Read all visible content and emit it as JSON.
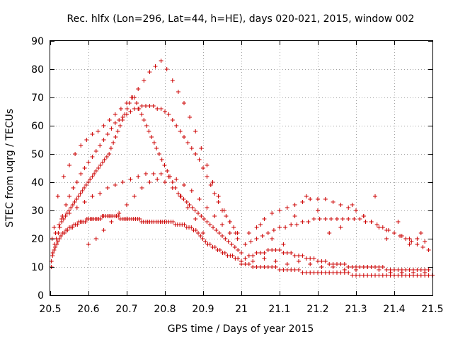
{
  "chart_data": {
    "type": "scatter",
    "title": "Rec. hlfx (Lon=296, Lat=44, h=HE), days 020-021, 2015, window 002",
    "xlabel": "GPS time / Days of year 2015",
    "ylabel": "STEC from uqrg / TECUs",
    "xlim": [
      20.5,
      21.5
    ],
    "ylim": [
      0,
      90
    ],
    "xticks": [
      20.5,
      20.6,
      20.7,
      20.8,
      20.9,
      21,
      21.1,
      21.2,
      21.3,
      21.4,
      21.5
    ],
    "xtick_labels": [
      "20.5",
      "20.6",
      "20.7",
      "20.8",
      "20.9",
      "21",
      "21.1",
      "21.2",
      "21.3",
      "21.4",
      "21.5"
    ],
    "yticks": [
      0,
      10,
      20,
      30,
      40,
      50,
      60,
      70,
      80,
      90
    ],
    "ytick_labels": [
      "0",
      "10",
      "20",
      "30",
      "40",
      "50",
      "60",
      "70",
      "80",
      "90"
    ],
    "grid": true,
    "marker": "plus",
    "color": "#cc0000",
    "series": [
      {
        "x": [
          20.503,
          20.506,
          20.51,
          20.513,
          20.517,
          20.52,
          20.524,
          20.528,
          20.533,
          20.537,
          20.541,
          20.545,
          20.55,
          20.554,
          20.558,
          20.562,
          20.566,
          20.571,
          20.575,
          20.579,
          20.583,
          20.588,
          20.592,
          20.596,
          20.6,
          20.605,
          20.609,
          20.613,
          20.618,
          20.622,
          20.627,
          20.631,
          20.636,
          20.64,
          20.645,
          20.65,
          20.654,
          20.659,
          20.664,
          20.669,
          20.673,
          20.678,
          20.683,
          20.688,
          20.693,
          20.698,
          20.703,
          20.708,
          20.713,
          20.718,
          20.723,
          20.729,
          20.734,
          20.739,
          20.744,
          20.75,
          20.755,
          20.76,
          20.766,
          20.771,
          20.777,
          20.782,
          20.788,
          20.793,
          20.799,
          20.804,
          20.81,
          20.816,
          20.821,
          20.827,
          20.833,
          20.839,
          20.845,
          20.851,
          20.857,
          20.863,
          20.869,
          20.875,
          20.881,
          20.887,
          20.893,
          20.899,
          20.906,
          20.912,
          20.918,
          20.925,
          20.931,
          20.938,
          20.944,
          20.951,
          20.957,
          20.964,
          20.971,
          20.977,
          20.984,
          20.991,
          21.0,
          21.01,
          21.02,
          21.03,
          21.04,
          21.05,
          21.06,
          21.07,
          21.08,
          21.09,
          21.1,
          21.11,
          21.12,
          21.13,
          21.14,
          21.15,
          21.16,
          21.17,
          21.18,
          21.19,
          21.2,
          21.21,
          21.22,
          21.23,
          21.24,
          21.25,
          21.26,
          21.27,
          21.28,
          21.29,
          21.3,
          21.31,
          21.32,
          21.33,
          21.34,
          21.35,
          21.36,
          21.37,
          21.38,
          21.39,
          21.4,
          21.41,
          21.42,
          21.43,
          21.44,
          21.45,
          21.46,
          21.47,
          21.48,
          21.49,
          21.5
        ],
        "y": [
          10,
          14,
          16,
          17,
          18,
          19,
          20,
          21,
          22,
          22,
          23,
          23,
          24,
          24,
          24,
          25,
          25,
          25,
          26,
          26,
          26,
          26,
          26,
          27,
          27,
          27,
          27,
          27,
          27,
          27,
          27,
          27,
          28,
          28,
          28,
          28,
          28,
          28,
          28,
          28,
          28,
          28,
          27,
          27,
          27,
          27,
          27,
          27,
          27,
          27,
          27,
          27,
          27,
          26,
          26,
          26,
          26,
          26,
          26,
          26,
          26,
          26,
          26,
          26,
          26,
          26,
          26,
          26,
          26,
          25,
          25,
          25,
          25,
          25,
          24,
          24,
          24,
          23,
          23,
          22,
          21,
          20,
          19,
          18,
          18,
          17,
          17,
          16,
          16,
          15,
          15,
          14,
          14,
          14,
          13,
          13,
          12,
          11,
          11,
          10,
          10,
          10,
          10,
          10,
          10,
          10,
          9,
          9,
          9,
          9,
          9,
          9,
          8,
          8,
          8,
          8,
          8,
          8,
          8,
          8,
          8,
          8,
          8,
          8,
          8,
          7,
          7,
          7,
          7,
          7,
          7,
          7,
          7,
          7,
          7,
          7,
          7,
          7,
          7,
          7,
          7,
          7,
          7,
          7,
          7,
          7,
          7
        ]
      },
      {
        "x": [
          20.503,
          20.507,
          20.512,
          20.516,
          20.521,
          20.525,
          20.53,
          20.535,
          20.54,
          20.544,
          20.549,
          20.554,
          20.559,
          20.564,
          20.569,
          20.574,
          20.579,
          20.584,
          20.589,
          20.594,
          20.599,
          20.604,
          20.61,
          20.615,
          20.62,
          20.626,
          20.631,
          20.637,
          20.642,
          20.648,
          20.654,
          20.659,
          20.665,
          20.671,
          20.677,
          20.683,
          20.689,
          20.695,
          20.701,
          20.707,
          20.713,
          20.72,
          20.726,
          20.732,
          20.739,
          20.745,
          20.752,
          20.758,
          20.765,
          20.772,
          20.778,
          20.785,
          20.792,
          20.799,
          20.806,
          20.813,
          20.82,
          20.827,
          20.835,
          20.842,
          20.849,
          20.857,
          20.864,
          20.872,
          20.879,
          20.887,
          20.895,
          20.902,
          20.91,
          20.918,
          20.926,
          20.934,
          20.942,
          20.95,
          20.958,
          20.966,
          20.975,
          20.983,
          20.991,
          21.0
        ],
        "y": [
          12,
          15,
          18,
          20,
          22,
          24,
          26,
          27,
          28,
          29,
          30,
          31,
          32,
          33,
          34,
          35,
          36,
          37,
          38,
          39,
          40,
          41,
          42,
          43,
          44,
          45,
          46,
          47,
          48,
          49,
          50,
          52,
          54,
          56,
          58,
          60,
          62,
          64,
          66,
          68,
          70,
          70,
          68,
          66,
          64,
          62,
          60,
          58,
          56,
          54,
          52,
          50,
          48,
          46,
          44,
          42,
          40,
          38,
          36,
          35,
          34,
          33,
          32,
          31,
          30,
          29,
          28,
          27,
          26,
          25,
          24,
          23,
          22,
          21,
          20,
          19,
          18,
          17,
          16,
          15
        ]
      },
      {
        "x": [
          20.505,
          20.514,
          20.523,
          20.532,
          20.541,
          20.55,
          20.56,
          20.57,
          20.58,
          20.59,
          20.6,
          20.61,
          20.62,
          20.63,
          20.64,
          20.65,
          20.66,
          20.67,
          20.68,
          20.69,
          20.7,
          20.71,
          20.72,
          20.73,
          20.74,
          20.75,
          20.76,
          20.77,
          20.78,
          20.79,
          20.8,
          20.81,
          20.82,
          20.83,
          20.84,
          20.85,
          20.86,
          20.87,
          20.88,
          20.89,
          20.9,
          20.91,
          20.92,
          20.93,
          20.94,
          20.95,
          20.96,
          20.97,
          20.98,
          20.99
        ],
        "y": [
          20,
          22,
          25,
          28,
          32,
          35,
          38,
          40,
          43,
          45,
          47,
          49,
          51,
          53,
          55,
          57,
          59,
          61,
          62,
          63,
          64,
          65,
          66,
          66,
          67,
          67,
          67,
          67,
          66,
          66,
          65,
          64,
          62,
          60,
          58,
          56,
          54,
          52,
          50,
          48,
          45,
          42,
          39,
          36,
          33,
          30,
          28,
          26,
          24,
          22
        ]
      },
      {
        "x": [
          20.52,
          20.535,
          20.55,
          20.565,
          20.58,
          20.595,
          20.61,
          20.625,
          20.64,
          20.655,
          20.67,
          20.685,
          20.7,
          20.715,
          20.73,
          20.745,
          20.76,
          20.775,
          20.79,
          20.805,
          20.82,
          20.835,
          20.85,
          20.865,
          20.88,
          20.895,
          20.91,
          20.925,
          20.94,
          20.955,
          20.97,
          20.985
        ],
        "y": [
          35,
          42,
          46,
          50,
          53,
          55,
          57,
          58,
          60,
          62,
          64,
          66,
          68,
          70,
          73,
          76,
          79,
          81,
          83,
          80,
          76,
          72,
          68,
          63,
          58,
          52,
          46,
          40,
          35,
          30,
          26,
          22
        ]
      },
      {
        "x": [
          20.51,
          20.53,
          20.55,
          20.57,
          20.59,
          20.61,
          20.63,
          20.65,
          20.67,
          20.69,
          20.71,
          20.73,
          20.75,
          20.77,
          20.79,
          20.81,
          20.83,
          20.85,
          20.87,
          20.89,
          20.91,
          20.93,
          20.95,
          20.97,
          20.99
        ],
        "y": [
          24,
          27,
          29,
          31,
          33,
          35,
          36,
          38,
          39,
          40,
          41,
          42,
          43,
          43,
          43,
          42,
          41,
          39,
          37,
          34,
          31,
          28,
          25,
          22,
          20
        ]
      },
      {
        "x": [
          20.6,
          20.62,
          20.64,
          20.66,
          20.68,
          20.7,
          20.72,
          20.74,
          20.76,
          20.78,
          20.8,
          20.82,
          20.84,
          20.86,
          20.88,
          20.9
        ],
        "y": [
          18,
          20,
          23,
          26,
          29,
          32,
          35,
          38,
          40,
          41,
          40,
          38,
          35,
          31,
          27,
          22
        ]
      },
      {
        "x": [
          21.01,
          21.02,
          21.03,
          21.04,
          21.05,
          21.06,
          21.07,
          21.08,
          21.09,
          21.1,
          21.11,
          21.12,
          21.13,
          21.14,
          21.15,
          21.16,
          21.17,
          21.18,
          21.19,
          21.2,
          21.21,
          21.22,
          21.23,
          21.24,
          21.25,
          21.26,
          21.27,
          21.28,
          21.29,
          21.3,
          21.31,
          21.32,
          21.33,
          21.34,
          21.35,
          21.36,
          21.37,
          21.38,
          21.39,
          21.4,
          21.41,
          21.42,
          21.43,
          21.44,
          21.45,
          21.46,
          21.47,
          21.48,
          21.49
        ],
        "y": [
          13,
          14,
          14,
          15,
          15,
          15,
          16,
          16,
          16,
          16,
          15,
          15,
          15,
          14,
          14,
          14,
          13,
          13,
          13,
          12,
          12,
          12,
          11,
          11,
          11,
          11,
          11,
          10,
          10,
          10,
          10,
          10,
          10,
          10,
          10,
          10,
          10,
          9,
          9,
          9,
          9,
          9,
          9,
          9,
          9,
          9,
          9,
          9,
          9
        ]
      },
      {
        "x": [
          21.01,
          21.025,
          21.04,
          21.055,
          21.07,
          21.085,
          21.1,
          21.115,
          21.13,
          21.145,
          21.16,
          21.175,
          21.19,
          21.205,
          21.22,
          21.235,
          21.25,
          21.265,
          21.28,
          21.295,
          21.31,
          21.325,
          21.34,
          21.355,
          21.37,
          21.385,
          21.4,
          21.415,
          21.43,
          21.445,
          21.46,
          21.475,
          21.49
        ],
        "y": [
          18,
          19,
          20,
          21,
          22,
          23,
          24,
          24,
          25,
          25,
          26,
          26,
          27,
          27,
          27,
          27,
          27,
          27,
          27,
          27,
          27,
          26,
          26,
          25,
          24,
          23,
          22,
          21,
          20,
          19,
          18,
          17,
          16
        ]
      },
      {
        "x": [
          21.04,
          21.06,
          21.08,
          21.1,
          21.12,
          21.14,
          21.16,
          21.18,
          21.2,
          21.22,
          21.24,
          21.26,
          21.28,
          21.3,
          21.32,
          21.34,
          21.36,
          21.38,
          21.4,
          21.42,
          21.44,
          21.46,
          21.48
        ],
        "y": [
          24,
          27,
          29,
          30,
          31,
          32,
          33,
          34,
          34,
          34,
          33,
          32,
          31,
          30,
          28,
          26,
          24,
          23,
          22,
          21,
          20,
          20,
          19
        ]
      },
      {
        "x": [
          21.02,
          21.05,
          21.08,
          21.11,
          21.14,
          21.17,
          21.2,
          21.23,
          21.26,
          21.29,
          21.32,
          21.35,
          21.38,
          21.41,
          21.44,
          21.47
        ],
        "y": [
          22,
          25,
          20,
          18,
          28,
          35,
          30,
          22,
          24,
          32,
          28,
          35,
          20,
          26,
          18,
          22
        ]
      },
      {
        "x": [
          21.0,
          21.03,
          21.06,
          21.09,
          21.12,
          21.15,
          21.18,
          21.21,
          21.24,
          21.27,
          21.3,
          21.33,
          21.36,
          21.39,
          21.42,
          21.45,
          21.48
        ],
        "y": [
          11,
          12,
          13,
          12,
          11,
          12,
          11,
          10,
          10,
          9,
          9,
          10,
          9,
          8,
          8,
          8,
          8
        ]
      }
    ]
  }
}
